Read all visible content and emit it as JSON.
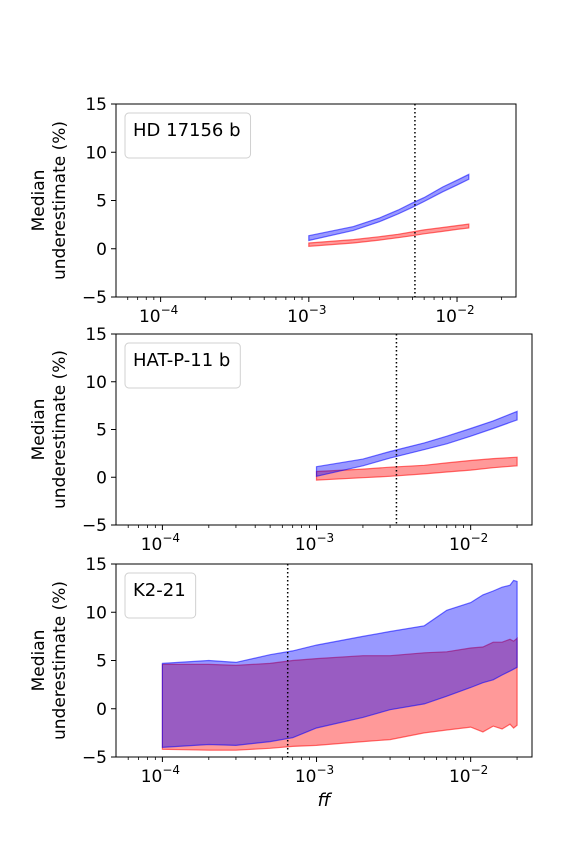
{
  "chart_data": [
    {
      "type": "area",
      "title": "HD 17156 b",
      "ylabel_lines": [
        "Median",
        "underestimate (%)"
      ],
      "xlabel": "",
      "xscale": "log",
      "xlim": [
        5e-05,
        0.025
      ],
      "ylim": [
        -5,
        15
      ],
      "xticks": [
        {
          "value": 0.0001,
          "base": "10",
          "exp": "−4"
        },
        {
          "value": 0.001,
          "base": "10",
          "exp": "−3"
        },
        {
          "value": 0.01,
          "base": "10",
          "exp": "−2"
        }
      ],
      "yticks": [
        {
          "value": -5,
          "label": "−5"
        },
        {
          "value": 0,
          "label": "0"
        },
        {
          "value": 5,
          "label": "5"
        },
        {
          "value": 10,
          "label": "10"
        },
        {
          "value": 15,
          "label": "15"
        }
      ],
      "vline": 0.0052,
      "series": [
        {
          "color": "#ff0000",
          "x": [
            0.001,
            0.002,
            0.003,
            0.004,
            0.005,
            0.006,
            0.008,
            0.01,
            0.012
          ],
          "low": [
            0.25,
            0.6,
            0.9,
            1.15,
            1.35,
            1.55,
            1.8,
            2.0,
            2.15
          ],
          "high": [
            0.6,
            0.95,
            1.25,
            1.5,
            1.75,
            1.95,
            2.2,
            2.4,
            2.55
          ]
        },
        {
          "color": "#0000ff",
          "x": [
            0.001,
            0.002,
            0.003,
            0.004,
            0.005,
            0.006,
            0.008,
            0.01,
            0.012
          ],
          "low": [
            0.85,
            1.9,
            2.8,
            3.6,
            4.3,
            4.9,
            5.9,
            6.6,
            7.2
          ],
          "high": [
            1.35,
            2.3,
            3.2,
            4.0,
            4.75,
            5.3,
            6.4,
            7.1,
            7.7
          ]
        }
      ]
    },
    {
      "type": "area",
      "title": "HAT-P-11 b",
      "ylabel_lines": [
        "Median",
        "underestimate (%)"
      ],
      "xlabel": "",
      "xscale": "log",
      "xlim": [
        5e-05,
        0.025
      ],
      "ylim": [
        -5,
        15
      ],
      "xticks": [
        {
          "value": 0.0001,
          "base": "10",
          "exp": "−4"
        },
        {
          "value": 0.001,
          "base": "10",
          "exp": "−3"
        },
        {
          "value": 0.01,
          "base": "10",
          "exp": "−2"
        }
      ],
      "yticks": [
        {
          "value": -5,
          "label": "−5"
        },
        {
          "value": 0,
          "label": "0"
        },
        {
          "value": 5,
          "label": "5"
        },
        {
          "value": 10,
          "label": "10"
        },
        {
          "value": 15,
          "label": "15"
        }
      ],
      "vline": 0.0033,
      "series": [
        {
          "color": "#ff0000",
          "x": [
            0.001,
            0.002,
            0.003,
            0.005,
            0.007,
            0.01,
            0.014,
            0.02
          ],
          "low": [
            -0.3,
            -0.05,
            0.1,
            0.35,
            0.55,
            0.75,
            1.0,
            1.2
          ],
          "high": [
            0.6,
            0.85,
            1.05,
            1.25,
            1.5,
            1.75,
            1.95,
            2.1
          ]
        },
        {
          "color": "#0000ff",
          "x": [
            0.001,
            0.002,
            0.003,
            0.005,
            0.007,
            0.01,
            0.014,
            0.02
          ],
          "low": [
            0.1,
            1.2,
            2.0,
            2.9,
            3.5,
            4.3,
            5.1,
            6.0
          ],
          "high": [
            1.1,
            1.9,
            2.7,
            3.6,
            4.3,
            5.1,
            5.9,
            6.9
          ]
        }
      ]
    },
    {
      "type": "area",
      "title": "K2-21",
      "ylabel_lines": [
        "Median",
        "underestimate (%)"
      ],
      "xlabel": "ff",
      "xscale": "log",
      "xlim": [
        5e-05,
        0.025
      ],
      "ylim": [
        -5,
        15
      ],
      "xticks": [
        {
          "value": 0.0001,
          "base": "10",
          "exp": "−4"
        },
        {
          "value": 0.001,
          "base": "10",
          "exp": "−3"
        },
        {
          "value": 0.01,
          "base": "10",
          "exp": "−2"
        }
      ],
      "yticks": [
        {
          "value": -5,
          "label": "−5"
        },
        {
          "value": 0,
          "label": "0"
        },
        {
          "value": 5,
          "label": "5"
        },
        {
          "value": 10,
          "label": "10"
        },
        {
          "value": 15,
          "label": "15"
        }
      ],
      "vline": 0.00065,
      "series": [
        {
          "color": "#ff0000",
          "x": [
            0.0001,
            0.0002,
            0.0003,
            0.0005,
            0.0007,
            0.001,
            0.002,
            0.003,
            0.005,
            0.007,
            0.01,
            0.012,
            0.014,
            0.016,
            0.018,
            0.019,
            0.02
          ],
          "low": [
            -4.2,
            -4.3,
            -4.3,
            -4.1,
            -3.9,
            -3.8,
            -3.4,
            -3.2,
            -2.5,
            -2.2,
            -1.9,
            -2.4,
            -1.8,
            -2.1,
            -1.6,
            -2.0,
            -1.7
          ],
          "high": [
            4.6,
            4.6,
            4.5,
            4.7,
            5.0,
            5.2,
            5.5,
            5.5,
            5.8,
            5.9,
            6.3,
            6.4,
            6.9,
            6.9,
            7.2,
            7.0,
            7.3
          ]
        },
        {
          "color": "#0000ff",
          "x": [
            0.0001,
            0.0002,
            0.0003,
            0.0005,
            0.0007,
            0.001,
            0.002,
            0.003,
            0.005,
            0.007,
            0.01,
            0.012,
            0.014,
            0.016,
            0.018,
            0.019,
            0.02
          ],
          "low": [
            -4.0,
            -3.7,
            -3.8,
            -3.4,
            -3.0,
            -2.0,
            -0.9,
            -0.1,
            0.5,
            1.3,
            2.2,
            2.7,
            3.0,
            3.5,
            3.9,
            4.1,
            4.3
          ],
          "high": [
            4.7,
            5.0,
            4.8,
            5.6,
            6.0,
            6.6,
            7.5,
            8.0,
            8.6,
            10.2,
            11.0,
            11.8,
            12.2,
            12.6,
            12.8,
            13.3,
            13.2
          ]
        }
      ]
    }
  ]
}
